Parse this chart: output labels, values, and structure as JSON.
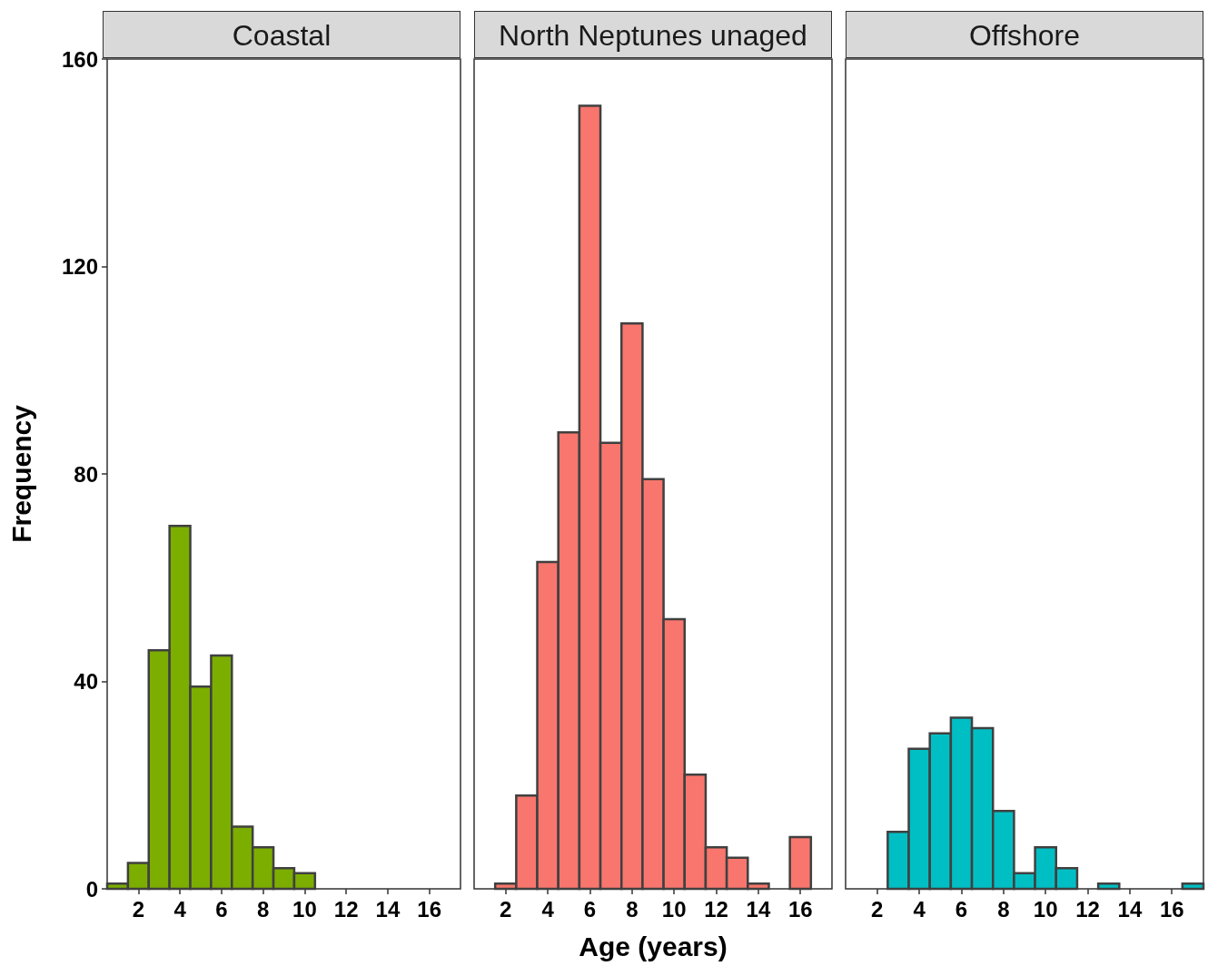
{
  "chart_data": [
    {
      "type": "histogram",
      "title": "Coastal",
      "ylabel": "Frequency",
      "bins": [
        0.5,
        1.5,
        2.5,
        3.5,
        4.5,
        5.5,
        6.5,
        7.5,
        8.5,
        9.5,
        10.5,
        11.5,
        12.5,
        13.5,
        14.5,
        15.5,
        16.5,
        17.5
      ],
      "values": [
        1,
        5,
        46,
        70,
        39,
        45,
        12,
        8,
        4,
        3,
        0,
        0,
        0,
        0,
        0,
        0,
        0
      ],
      "color": "#7cae00",
      "xlim": [
        0.5,
        17.5
      ],
      "ylim": [
        0,
        160
      ],
      "xticks": [
        2,
        4,
        6,
        8,
        10,
        12,
        14,
        16
      ],
      "yticks": [
        0,
        40,
        80,
        120,
        160
      ],
      "grid": false
    },
    {
      "type": "histogram",
      "title": "North Neptunes unaged",
      "xlabel": "Age (years)",
      "bins": [
        0.5,
        1.5,
        2.5,
        3.5,
        4.5,
        5.5,
        6.5,
        7.5,
        8.5,
        9.5,
        10.5,
        11.5,
        12.5,
        13.5,
        14.5,
        15.5,
        16.5,
        17.5
      ],
      "values": [
        0,
        1,
        18,
        63,
        88,
        151,
        86,
        109,
        79,
        52,
        22,
        8,
        6,
        1,
        0,
        10,
        0
      ],
      "color": "#f8766d",
      "xlim": [
        0.5,
        17.5
      ],
      "ylim": [
        0,
        160
      ],
      "xticks": [
        2,
        4,
        6,
        8,
        10,
        12,
        14,
        16
      ],
      "yticks": [
        0,
        40,
        80,
        120,
        160
      ],
      "grid": false,
      "tick_labels": "x"
    },
    {
      "type": "histogram",
      "title": "Offshore",
      "bins": [
        0.5,
        1.5,
        2.5,
        3.5,
        4.5,
        5.5,
        6.5,
        7.5,
        8.5,
        9.5,
        10.5,
        11.5,
        12.5,
        13.5,
        14.5,
        15.5,
        16.5,
        17.5
      ],
      "values": [
        0,
        0,
        11,
        27,
        30,
        33,
        31,
        15,
        3,
        8,
        4,
        0,
        1,
        0,
        0,
        0,
        1
      ],
      "color": "#00bfc4",
      "xlim": [
        0.5,
        17.5
      ],
      "ylim": [
        0,
        160
      ],
      "xticks": [
        2,
        4,
        6,
        8,
        10,
        12,
        14,
        16
      ],
      "yticks": [
        0,
        40,
        80,
        120,
        160
      ],
      "grid": false,
      "tick_labels": "x"
    }
  ]
}
